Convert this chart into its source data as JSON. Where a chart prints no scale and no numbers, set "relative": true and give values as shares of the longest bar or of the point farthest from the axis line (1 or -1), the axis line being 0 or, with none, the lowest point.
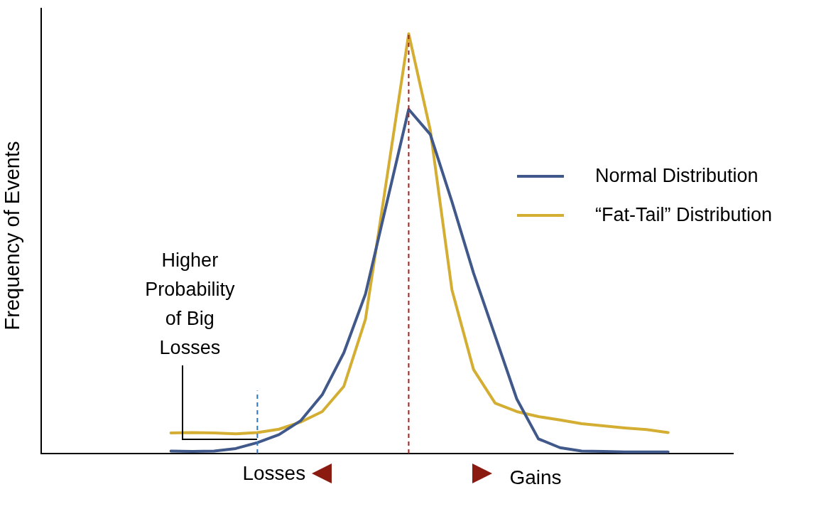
{
  "chart_data": {
    "type": "line",
    "ylabel": "Frequency of Events",
    "relative": true,
    "annotations": [
      "Higher Probability of Big Losses",
      "Losses",
      "Gains"
    ],
    "categories": [
      null,
      null,
      null,
      null,
      null,
      null,
      null,
      null,
      null,
      null,
      null,
      null,
      null,
      null,
      null,
      null,
      null,
      null,
      null,
      null,
      null,
      null,
      null,
      null,
      null,
      null,
      null,
      null,
      null,
      null,
      null,
      null,
      null
    ],
    "grid": false,
    "marker": "none",
    "line_style": "solid",
    "legend": "right",
    "series": [
      {
        "name": "Normal Distribution",
        "color": "#41598a",
        "values": [
          null,
          null,
          null,
          null,
          null,
          null,
          0.006,
          0.005,
          0.006,
          0.012,
          0.026,
          0.045,
          0.078,
          0.14,
          0.24,
          0.38,
          0.6,
          0.82,
          0.76,
          0.6,
          0.43,
          0.28,
          0.13,
          0.035,
          0.014,
          0.006,
          0.005,
          0.004,
          0.004,
          0.004,
          null,
          null,
          null
        ]
      },
      {
        "name": "“Fat-Tail” Distribution",
        "color": "#d4ae32",
        "values": [
          null,
          null,
          null,
          null,
          null,
          null,
          0.049,
          0.05,
          0.049,
          0.047,
          0.05,
          0.058,
          0.075,
          0.1,
          0.16,
          0.32,
          0.66,
          1,
          0.77,
          0.39,
          0.2,
          0.12,
          0.1,
          0.088,
          0.08,
          0.071,
          0.066,
          0.061,
          0.057,
          0.05,
          null,
          null,
          null
        ]
      }
    ]
  }
}
